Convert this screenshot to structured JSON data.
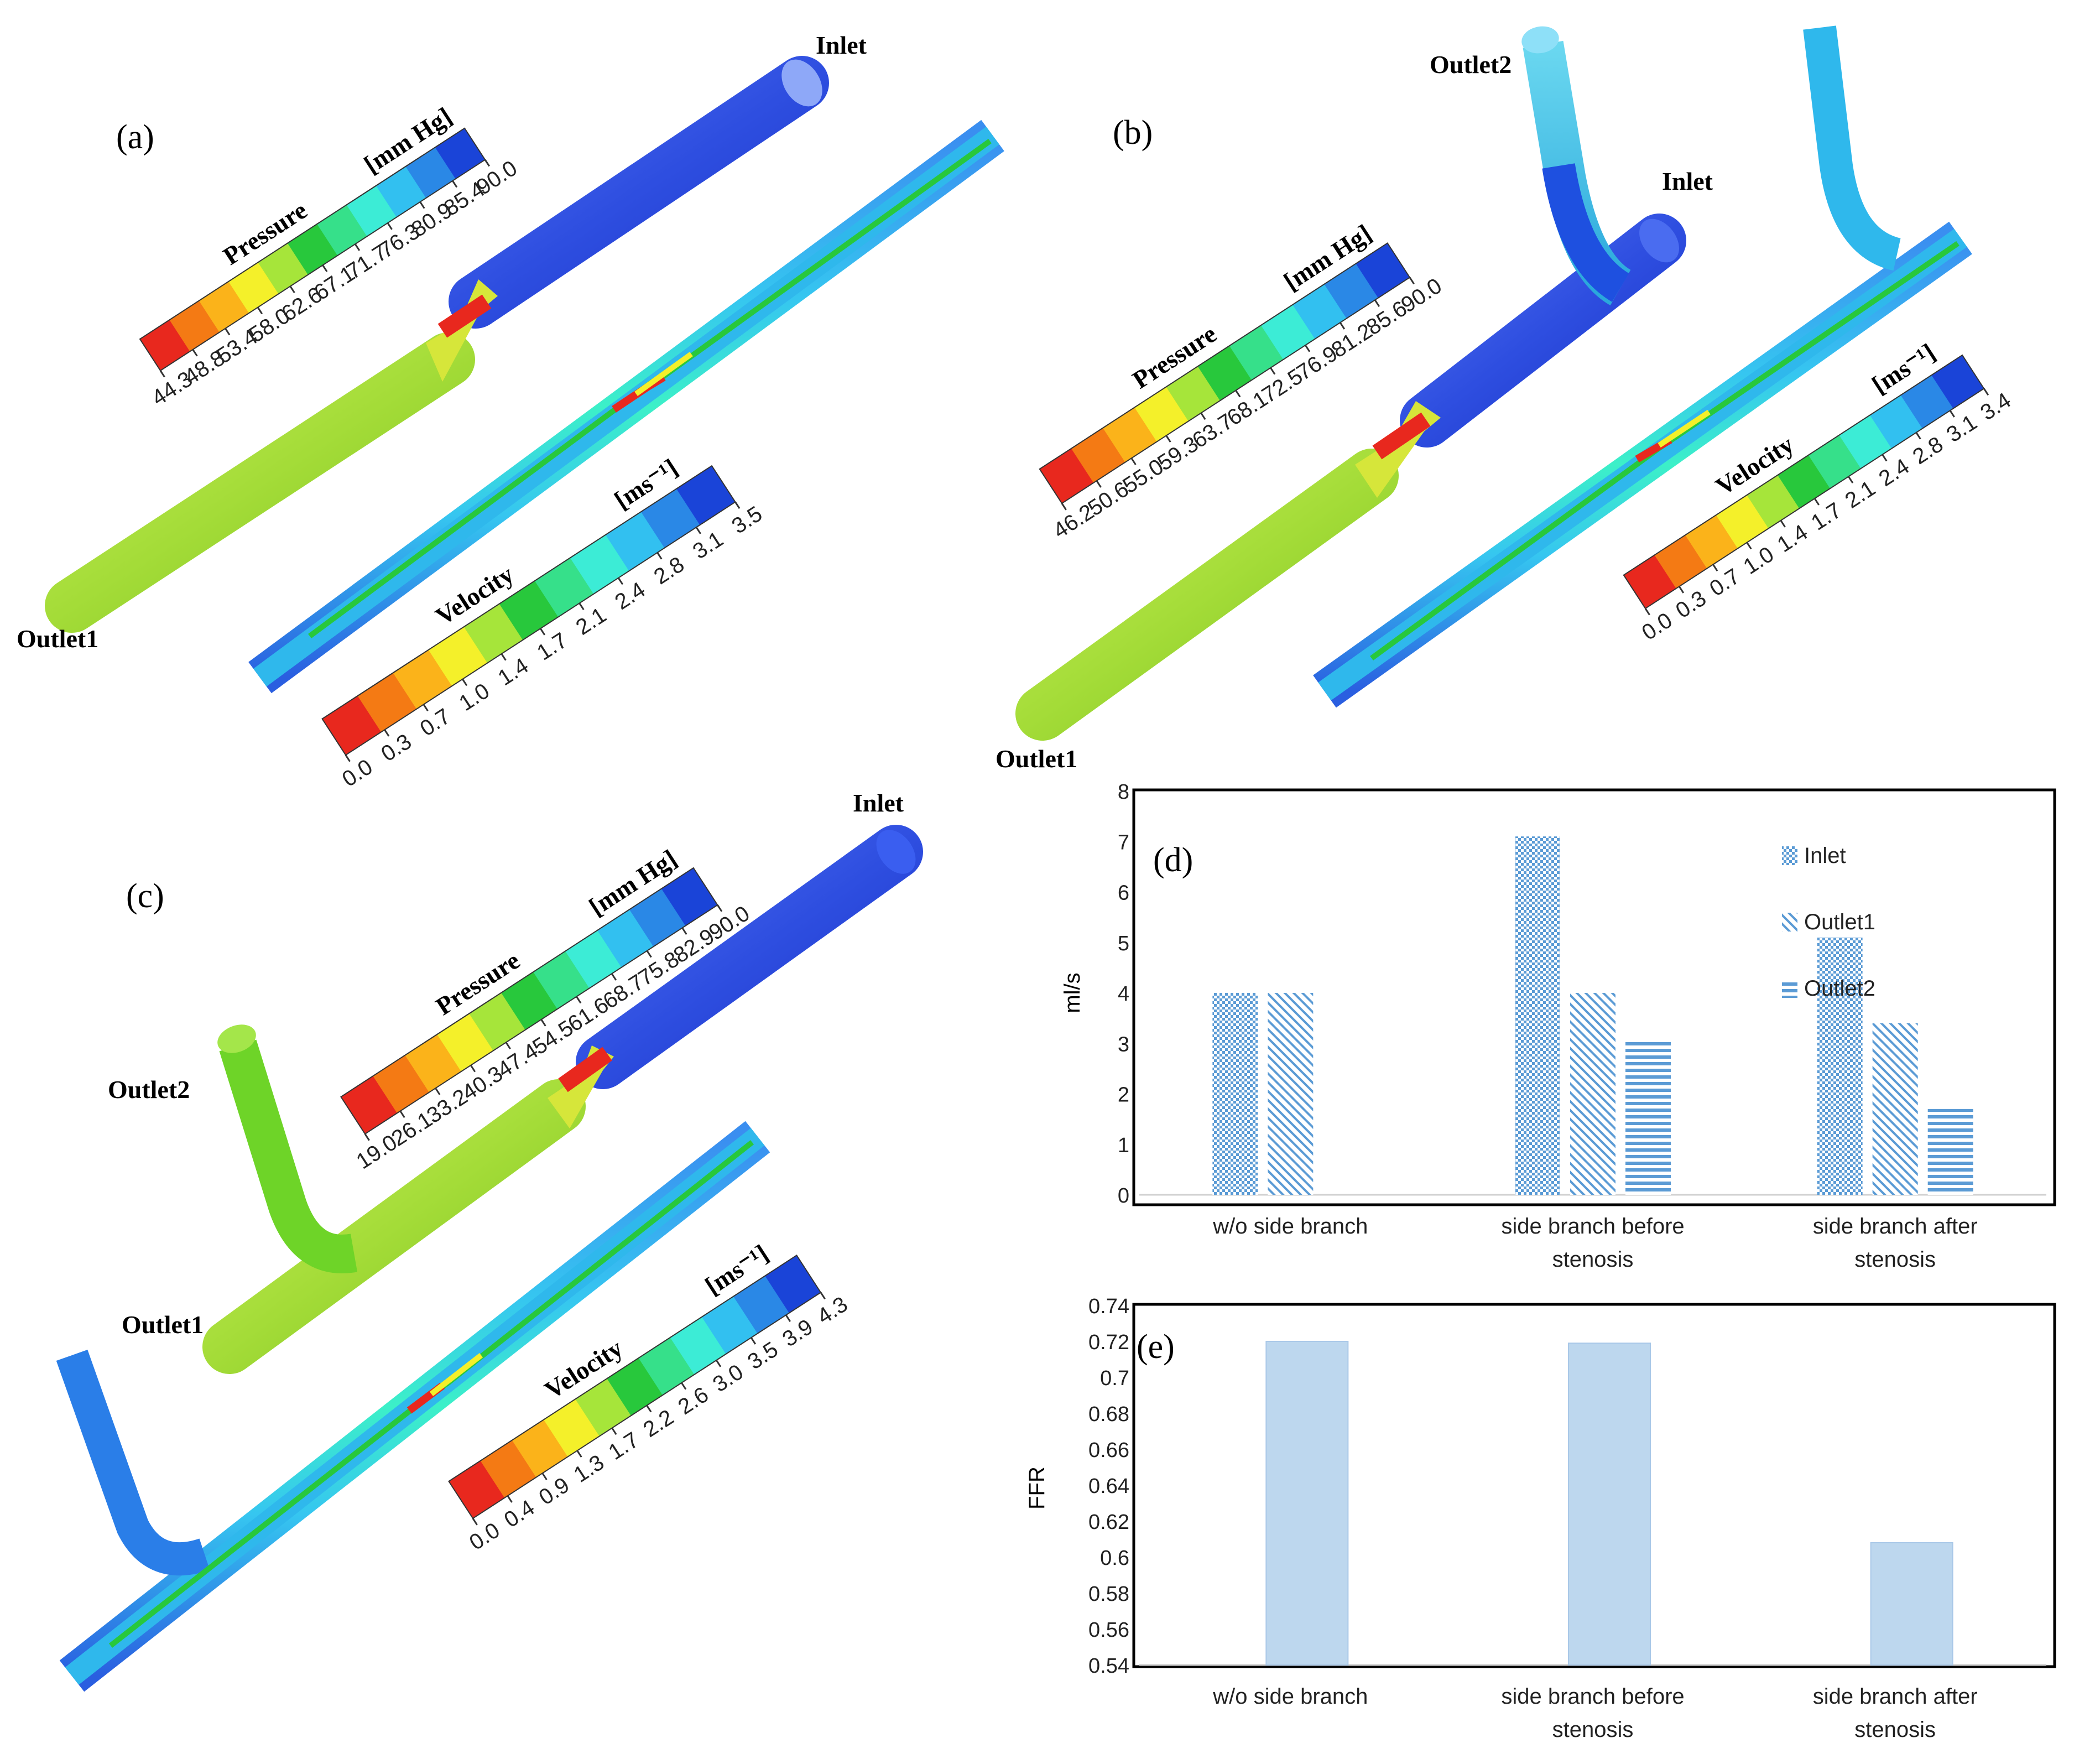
{
  "panels": {
    "a": {
      "label": "(a)",
      "inlet_label": "Inlet",
      "outlet1_label": "Outlet1",
      "pressure": {
        "title": "Pressure",
        "unit": "[mm Hg]",
        "ticks": [
          "44.3",
          "48.8",
          "53.4",
          "58.0",
          "62.6",
          "67.1",
          "71.7",
          "76.3",
          "80.9",
          "85.4",
          "90.0"
        ]
      },
      "velocity": {
        "title": "Velocity",
        "unit": "[ms⁻¹]",
        "ticks": [
          "0.0",
          "0.3",
          "0.7",
          "1.0",
          "1.4",
          "1.7",
          "2.1",
          "2.4",
          "2.8",
          "3.1",
          "3.5"
        ]
      }
    },
    "b": {
      "label": "(b)",
      "inlet_label": "Inlet",
      "outlet1_label": "Outlet1",
      "outlet2_label": "Outlet2",
      "pressure": {
        "title": "Pressure",
        "unit": "[mm Hg]",
        "ticks": [
          "46.2",
          "50.6",
          "55.0",
          "59.3",
          "63.7",
          "68.1",
          "72.5",
          "76.9",
          "81.2",
          "85.6",
          "90.0"
        ]
      },
      "velocity": {
        "title": "Velocity",
        "unit": "[ms⁻¹]",
        "ticks": [
          "0.0",
          "0.3",
          "0.7",
          "1.0",
          "1.4",
          "1.7",
          "2.1",
          "2.4",
          "2.8",
          "3.1",
          "3.4"
        ]
      }
    },
    "c": {
      "label": "(c)",
      "inlet_label": "Inlet",
      "outlet1_label": "Outlet1",
      "outlet2_label": "Outlet2",
      "pressure": {
        "title": "Pressure",
        "unit": "[mm Hg]",
        "ticks": [
          "19.0",
          "26.1",
          "33.2",
          "40.3",
          "47.4",
          "54.5",
          "61.6",
          "68.7",
          "75.8",
          "82.9",
          "90.0"
        ]
      },
      "velocity": {
        "title": "Velocity",
        "unit": "[ms⁻¹]",
        "ticks": [
          "0.0",
          "0.4",
          "0.9",
          "1.3",
          "1.7",
          "2.2",
          "2.6",
          "3.0",
          "3.5",
          "3.9",
          "4.3"
        ]
      }
    }
  },
  "colorbar_colors": [
    "#e8281e",
    "#f47a14",
    "#fbb31a",
    "#f4f02a",
    "#a6e53a",
    "#28c83c",
    "#36e08a",
    "#3cecd6",
    "#32c0f0",
    "#2a88e6",
    "#1a44d8"
  ],
  "chart_data": [
    {
      "panel": "(d)",
      "type": "bar",
      "ylabel": "ml/s",
      "ylim": [
        0,
        8
      ],
      "yticks": [
        "0",
        "1",
        "2",
        "3",
        "4",
        "5",
        "6",
        "7",
        "8"
      ],
      "categories": [
        "w/o side branch",
        "side branch before stenosis",
        "side branch after stenosis"
      ],
      "category_lines": [
        [
          "w/o side branch"
        ],
        [
          "side branch before",
          "stenosis"
        ],
        [
          "side branch after",
          "stenosis"
        ]
      ],
      "series": [
        {
          "name": "Inlet",
          "values": [
            4.0,
            7.1,
            5.1
          ]
        },
        {
          "name": "Outlet1",
          "values": [
            4.0,
            4.0,
            3.4
          ]
        },
        {
          "name": "Outlet2",
          "values": [
            null,
            3.05,
            1.7
          ]
        }
      ],
      "legend": "top-right"
    },
    {
      "panel": "(e)",
      "type": "bar",
      "ylabel": "FFR",
      "ylim": [
        0.54,
        0.74
      ],
      "yticks": [
        "0.54",
        "0.56",
        "0.58",
        "0.6",
        "0.62",
        "0.64",
        "0.66",
        "0.68",
        "0.7",
        "0.72",
        "0.74"
      ],
      "categories": [
        "w/o side branch",
        "side branch before stenosis",
        "side branch after stenosis"
      ],
      "category_lines": [
        [
          "w/o side branch"
        ],
        [
          "side branch before",
          "stenosis"
        ],
        [
          "side branch after",
          "stenosis"
        ]
      ],
      "series": [
        {
          "name": "FFR",
          "values": [
            0.72,
            0.719,
            0.608
          ]
        }
      ],
      "color": "#bdd7ee"
    }
  ]
}
